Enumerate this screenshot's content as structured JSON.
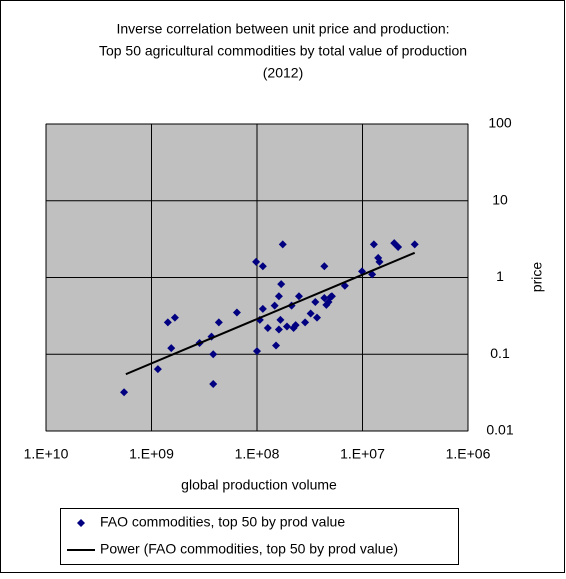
{
  "chart_data": {
    "type": "scatter",
    "title": [
      "Inverse correlation between unit price and production:",
      "Top 50 agricultural commodities by total value of production",
      "(2012)"
    ],
    "x_label": "global production volume",
    "y_label": "price",
    "x_scale": "log",
    "y_scale": "log",
    "xlim": [
      10000000000,
      1000000
    ],
    "ylim": [
      0.01,
      100
    ],
    "xticks": [
      {
        "value": 10000000000,
        "label": "1.E+10"
      },
      {
        "value": 1000000000,
        "label": "1.E+09"
      },
      {
        "value": 100000000,
        "label": "1.E+08"
      },
      {
        "value": 10000000,
        "label": "1.E+07"
      },
      {
        "value": 1000000,
        "label": "1.E+06"
      }
    ],
    "yticks": [
      0.01,
      0.1,
      1,
      10,
      100
    ],
    "grid": true,
    "plot_background": "#c0c0c0",
    "legend_position": "bottom",
    "series": [
      {
        "name": "FAO commodities, top 50 by prod value",
        "color": "#000080",
        "x": [
          1820000000,
          870000000,
          700000000,
          600000000,
          650000000,
          350000000,
          260000000,
          260000000,
          270000000,
          230000000,
          155000000,
          100000000,
          102000000,
          88000000,
          94000000,
          88000000,
          79000000,
          68000000,
          66000000,
          62000000,
          60000000,
          62000000,
          59000000,
          57000000,
          52000000,
          47000000,
          43000000,
          45000000,
          40000000,
          35000000,
          31000000,
          28000000,
          23000000,
          23000000,
          22000000,
          21000000,
          20000000,
          19500000,
          14700000,
          10100000,
          8100000,
          7800000,
          7100000,
          6900000,
          5000000,
          4600000,
          3200000,
          27000000
        ],
        "values": [
          0.032,
          0.064,
          0.26,
          0.3,
          0.12,
          0.14,
          0.041,
          0.1,
          0.17,
          0.26,
          0.35,
          0.11,
          1.6,
          1.4,
          0.28,
          0.39,
          0.22,
          0.43,
          0.13,
          0.21,
          0.28,
          0.57,
          0.82,
          2.7,
          0.23,
          0.43,
          0.24,
          0.22,
          0.57,
          0.26,
          0.34,
          0.48,
          1.4,
          0.54,
          0.44,
          0.48,
          0.56,
          0.57,
          0.78,
          1.2,
          1.1,
          2.7,
          1.8,
          1.6,
          2.8,
          2.5,
          2.7,
          0.3
        ]
      }
    ],
    "trendline": {
      "name": "Power (FAO commodities, top 50 by prod value)",
      "color": "#000000",
      "x": [
        1750000000,
        3200000
      ],
      "y": [
        0.055,
        2.1
      ]
    }
  }
}
